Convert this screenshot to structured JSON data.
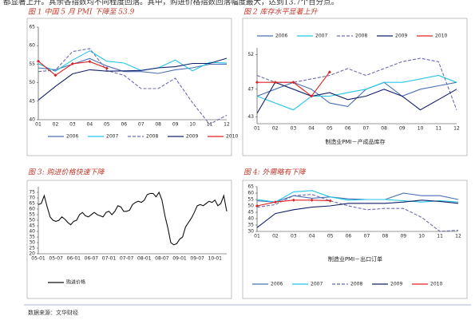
{
  "text": "都显著上升。其余各指数均不同程度回落。其中，购进价格指数回落幅度最大，达到13.7个百分点。",
  "captions": [
    "图 1 中国 5 月 PMI 下降至 53.9",
    "图 2 库存水平显著上升",
    "图 3: 购进价格快速下降",
    "图 4: 外需略有下降"
  ],
  "source": "数据来源：文华财经",
  "chart_data": [
    {
      "type": "line",
      "categories": [
        "01",
        "02",
        "03",
        "04",
        "05",
        "06",
        "07",
        "08",
        "09",
        "10",
        "11",
        "12"
      ],
      "ylim": [
        40,
        65
      ],
      "yticks": [
        40,
        45,
        50,
        55,
        60,
        65
      ],
      "legend": "bottom",
      "series": [
        {
          "name": "2006",
          "color": "#4a6fb5",
          "values": [
            54,
            53.5,
            55,
            56.5,
            54.5,
            53,
            53,
            52.5,
            53.5,
            54,
            55,
            55
          ]
        },
        {
          "name": "2007",
          "color": "#22c5e8",
          "values": [
            55.1,
            53.1,
            56.1,
            58.6,
            55.8,
            55.3,
            53.3,
            54,
            56.1,
            53.2,
            55.5,
            55.3
          ]
        },
        {
          "name": "2008",
          "color": "#6a6ab0",
          "style": "dashed",
          "values": [
            53,
            53.4,
            58.4,
            59.2,
            53.3,
            52,
            48.4,
            48.4,
            51.2,
            44.6,
            38.8,
            41.2
          ]
        },
        {
          "name": "2009",
          "color": "#14206a",
          "values": [
            45.3,
            49,
            52.4,
            53.5,
            53.1,
            53.2,
            53.3,
            54,
            54.3,
            55.2,
            55.2,
            56.6
          ]
        },
        {
          "name": "2010",
          "color": "#e02020",
          "marker": "diamond",
          "values": [
            55.8,
            52,
            55.1,
            55.7,
            53.9,
            null,
            null,
            null,
            null,
            null,
            null,
            null
          ]
        }
      ]
    },
    {
      "type": "line",
      "annotation": "制造业PMI－产成品库存",
      "categories": [
        "01",
        "02",
        "03",
        "04",
        "05",
        "06",
        "07",
        "08",
        "09",
        "10",
        "11",
        "12"
      ],
      "ylim": [
        42,
        53
      ],
      "yticks": [
        43,
        47,
        52
      ],
      "legend": "top",
      "series": [
        {
          "name": "2006",
          "color": "#4a6fb5",
          "values": [
            46,
            47,
            48,
            47,
            45,
            44.5,
            47,
            48,
            46,
            47,
            47.5,
            48
          ]
        },
        {
          "name": "2007",
          "color": "#22c5e8",
          "values": [
            46,
            45,
            44,
            46,
            46,
            46.5,
            47,
            48,
            48,
            48.5,
            49,
            48
          ]
        },
        {
          "name": "2008",
          "color": "#6a6ab0",
          "style": "dashed",
          "values": [
            49,
            48,
            48,
            48.5,
            49,
            50,
            49,
            50,
            51,
            51.5,
            51,
            44
          ]
        },
        {
          "name": "2009",
          "color": "#14206a",
          "values": [
            43.5,
            48,
            47,
            46,
            46.5,
            45.5,
            46,
            47,
            46,
            44,
            45.5,
            47
          ]
        },
        {
          "name": "2010",
          "color": "#e02020",
          "marker": "diamond",
          "values": [
            48,
            48,
            48,
            46,
            49.5,
            null,
            null,
            null,
            null,
            null,
            null,
            null
          ]
        }
      ]
    },
    {
      "type": "line",
      "categories": [
        "05-01",
        null,
        null,
        null,
        null,
        null,
        "05-07",
        null,
        null,
        null,
        null,
        null,
        "06-01",
        null,
        null,
        null,
        null,
        null,
        "06-07",
        null,
        null,
        null,
        null,
        null,
        "07-01",
        null,
        null,
        null,
        null,
        null,
        "07-07",
        null,
        null,
        null,
        null,
        null,
        "08-01",
        null,
        null,
        null,
        null,
        null,
        "08-07",
        null,
        null,
        null,
        null,
        null,
        "09-01",
        null,
        null,
        null,
        null,
        null,
        "09-07",
        null,
        null,
        null,
        null,
        null,
        "10-01",
        null,
        null,
        null,
        null
      ],
      "ylim": [
        20,
        80
      ],
      "yticks": [
        20,
        25,
        30,
        35,
        40,
        45,
        50,
        55,
        60,
        65,
        70,
        75
      ],
      "legend": "bottom",
      "series": [
        {
          "name": "购进价格",
          "color": "#111111",
          "values": [
            64,
            65,
            72,
            62,
            53,
            50,
            49,
            50,
            53,
            51,
            48,
            46,
            49,
            50,
            55,
            57,
            54,
            53,
            55,
            57,
            55,
            54,
            53,
            57,
            58,
            55,
            58,
            63,
            62,
            58,
            58,
            59,
            64,
            66,
            67,
            66,
            68,
            73,
            74,
            74,
            71,
            75,
            68,
            54,
            43,
            30,
            28,
            29,
            33,
            35,
            44,
            48,
            52,
            57,
            63,
            64,
            63,
            65,
            67,
            66,
            68,
            63,
            65,
            72,
            58
          ]
        }
      ]
    },
    {
      "type": "line",
      "annotation": "制造业PMI－出口订单",
      "categories": [
        "01",
        "02",
        "03",
        "04",
        "05",
        "06",
        "07",
        "08",
        "09",
        "10",
        "11",
        "12"
      ],
      "ylim": [
        30,
        65
      ],
      "yticks": [
        30,
        35,
        40,
        45,
        50,
        55,
        60,
        65
      ],
      "legend": "bottom",
      "series": [
        {
          "name": "2006",
          "color": "#4a6fb5",
          "values": [
            54,
            53,
            58,
            56,
            57,
            55.5,
            55,
            55,
            60,
            58,
            58,
            55
          ]
        },
        {
          "name": "2007",
          "color": "#22c5e8",
          "values": [
            55,
            53,
            61,
            62,
            57,
            54.5,
            55,
            55,
            54,
            53,
            54,
            53
          ]
        },
        {
          "name": "2008",
          "color": "#6a6ab0",
          "style": "dashed",
          "values": [
            49,
            51,
            58,
            59,
            54,
            50,
            47,
            48,
            48,
            41,
            30,
            31
          ]
        },
        {
          "name": "2009",
          "color": "#14206a",
          "values": [
            33,
            44,
            47,
            49,
            50,
            52,
            52,
            52,
            53,
            54.5,
            53.5,
            52
          ]
        },
        {
          "name": "2010",
          "color": "#e02020",
          "marker": "diamond",
          "values": [
            50,
            53,
            54.5,
            54.5,
            54,
            null,
            null,
            null,
            null,
            null,
            null,
            null
          ]
        }
      ]
    }
  ]
}
